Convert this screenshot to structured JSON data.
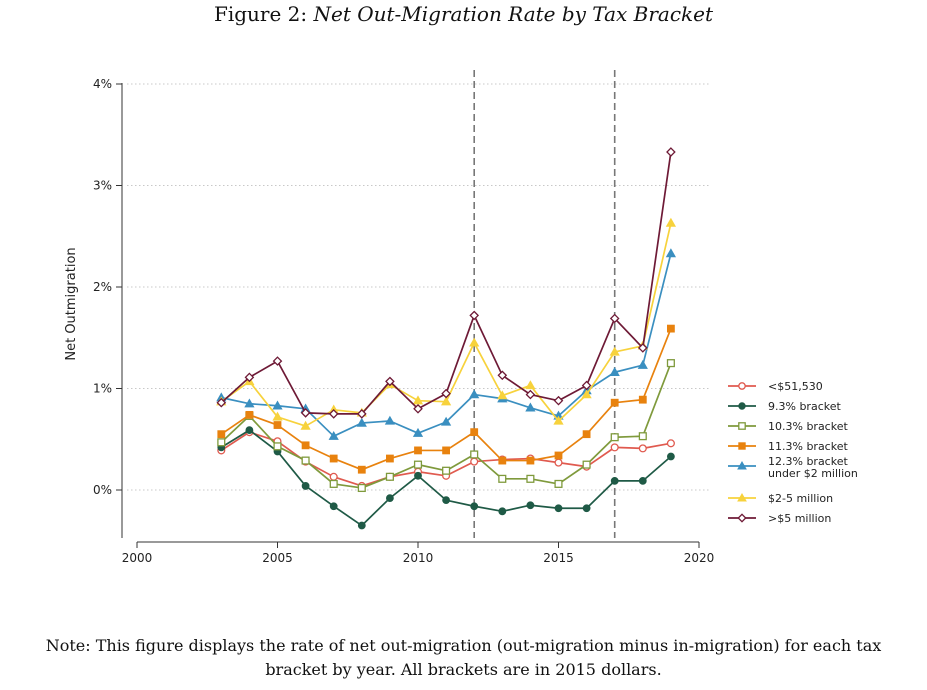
{
  "figure": {
    "label": "Figure 2:",
    "title": "Net Out-Migration Rate by Tax Bracket"
  },
  "note": {
    "line1": "Note: This figure displays the rate of net out-migration (out-migration minus in-migration) for each tax",
    "line2": "bracket by year. All brackets are in 2015 dollars."
  },
  "chart_data": {
    "type": "line",
    "ylabel": "Net Outmigration",
    "xlabel": "",
    "xlim": [
      2000,
      2020
    ],
    "ylim": [
      -0.45,
      4.0
    ],
    "xticks": [
      2000,
      2005,
      2010,
      2015,
      2020
    ],
    "yticks": [
      {
        "value": 0,
        "label": "0%"
      },
      {
        "value": 1,
        "label": "1%"
      },
      {
        "value": 2,
        "label": "2%"
      },
      {
        "value": 3,
        "label": "3%"
      },
      {
        "value": 4,
        "label": "4%"
      }
    ],
    "grid": "horizontal dotted",
    "vlines": [
      2012,
      2017
    ],
    "legend_position": "right",
    "x": [
      2003,
      2004,
      2005,
      2006,
      2007,
      2008,
      2009,
      2010,
      2011,
      2012,
      2013,
      2014,
      2015,
      2016,
      2017,
      2018,
      2019
    ],
    "series": [
      {
        "name": "<$51,530",
        "color": "#e05a4f",
        "marker": "circle-open",
        "values": [
          0.39,
          0.57,
          0.48,
          0.28,
          0.13,
          0.04,
          0.13,
          0.18,
          0.14,
          0.28,
          0.3,
          0.31,
          0.27,
          0.23,
          0.42,
          0.41,
          0.46
        ]
      },
      {
        "name": "9.3% bracket",
        "color": "#1f5a46",
        "marker": "circle-filled",
        "values": [
          0.42,
          0.59,
          0.38,
          0.04,
          -0.16,
          -0.35,
          -0.08,
          0.14,
          -0.1,
          -0.16,
          -0.21,
          -0.15,
          -0.18,
          -0.18,
          0.09,
          0.09,
          0.33
        ]
      },
      {
        "name": "10.3% bracket",
        "color": "#7f9a3c",
        "marker": "square-open",
        "values": [
          0.47,
          0.73,
          0.43,
          0.29,
          0.06,
          0.02,
          0.13,
          0.25,
          0.19,
          0.35,
          0.11,
          0.11,
          0.06,
          0.25,
          0.52,
          0.53,
          1.25
        ]
      },
      {
        "name": "11.3% bracket",
        "color": "#e8820e",
        "marker": "square-filled",
        "values": [
          0.55,
          0.74,
          0.64,
          0.44,
          0.31,
          0.2,
          0.31,
          0.39,
          0.39,
          0.57,
          0.29,
          0.29,
          0.34,
          0.55,
          0.86,
          0.89,
          1.59
        ]
      },
      {
        "name": "12.3% bracket\nunder $2 million",
        "color": "#3a8fc0",
        "marker": "triangle-filled",
        "values": [
          0.91,
          0.85,
          0.83,
          0.8,
          0.53,
          0.66,
          0.68,
          0.56,
          0.67,
          0.94,
          0.9,
          0.81,
          0.73,
          0.98,
          1.16,
          1.23,
          2.33
        ]
      },
      {
        "name": "$2-5 million",
        "color": "#f7d23c",
        "marker": "triangle-filled",
        "values": [
          0.87,
          1.07,
          0.72,
          0.63,
          0.79,
          0.76,
          1.04,
          0.88,
          0.87,
          1.45,
          0.93,
          1.03,
          0.68,
          0.94,
          1.36,
          1.42,
          2.63
        ]
      },
      {
        "name": ">$5 million",
        "color": "#6e1a36",
        "marker": "diamond-open",
        "values": [
          0.86,
          1.11,
          1.27,
          0.76,
          0.75,
          0.75,
          1.07,
          0.8,
          0.95,
          1.72,
          1.13,
          0.94,
          0.88,
          1.03,
          1.69,
          1.4,
          3.33
        ]
      }
    ]
  }
}
